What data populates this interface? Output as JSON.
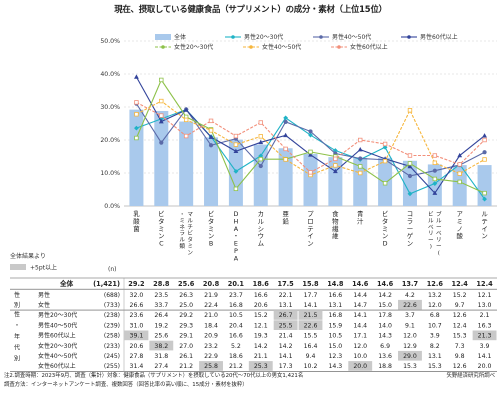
{
  "title": "現在、摂取している健康食品（サプリメント）の成分・素材（上位15位）",
  "chart_data": {
    "type": "bar",
    "ylim": [
      0,
      50
    ],
    "yticks": [
      "0.0%",
      "10.0%",
      "20.0%",
      "30.0%",
      "40.0%",
      "50.0%"
    ],
    "grid": true,
    "legend_position": "top",
    "categories": [
      "乳酸菌",
      "ビタミンC",
      "マルチビタミン・ミネラル類",
      "ビタミンB",
      "DHA・EPA",
      "カルシウム",
      "亜鉛",
      "プロテイン",
      "食物繊維",
      "青汁",
      "ビタミンD",
      "コラーゲン",
      "ブルーベリー（ビルベリー）",
      "アミノ酸",
      "ルテイン"
    ],
    "totals": [
      29.2,
      28.8,
      25.6,
      20.8,
      20.1,
      18.6,
      17.5,
      15.8,
      14.8,
      14.6,
      14.6,
      13.7,
      12.6,
      12.4,
      12.4
    ],
    "series": [
      {
        "name": "全体",
        "color": "#a9c9ec",
        "values": [
          29.2,
          28.8,
          25.6,
          20.8,
          20.1,
          18.6,
          17.5,
          15.8,
          14.8,
          14.6,
          14.6,
          13.7,
          12.6,
          12.4,
          12.4
        ]
      },
      {
        "name": "男性20～30代",
        "color": "#1fb3c6",
        "values": [
          23.6,
          26.4,
          29.2,
          21.0,
          10.5,
          15.2,
          26.7,
          21.5,
          16.8,
          14.1,
          17.8,
          3.7,
          6.8,
          12.6,
          2.1
        ]
      },
      {
        "name": "男性40～50代",
        "color": "#5b6aa8",
        "values": [
          31.0,
          19.2,
          29.3,
          18.4,
          20.4,
          12.1,
          25.5,
          22.6,
          15.9,
          14.4,
          14.0,
          9.1,
          10.7,
          12.4,
          16.3
        ]
      },
      {
        "name": "男性60代以上",
        "color": "#33449b",
        "values": [
          39.1,
          25.6,
          29.1,
          20.9,
          16.6,
          19.3,
          21.4,
          15.5,
          10.5,
          17.1,
          14.3,
          12.0,
          3.9,
          15.3,
          21.3
        ]
      },
      {
        "name": "女性20～30代",
        "color": "#8dc149",
        "values": [
          20.6,
          38.2,
          27.0,
          23.2,
          5.2,
          14.2,
          14.2,
          16.4,
          15.0,
          12.0,
          6.9,
          12.9,
          8.2,
          7.3,
          3.9
        ]
      },
      {
        "name": "女性40～50代",
        "color": "#f6b63c",
        "values": [
          27.8,
          31.8,
          26.1,
          22.9,
          18.6,
          21.1,
          14.1,
          9.4,
          12.3,
          10.0,
          13.6,
          29.0,
          13.1,
          9.8,
          14.1
        ]
      },
      {
        "name": "女性60代以上",
        "color": "#f28f7a",
        "values": [
          31.4,
          27.4,
          21.2,
          25.8,
          21.2,
          25.3,
          17.3,
          10.2,
          14.3,
          20.0,
          18.8,
          15.3,
          15.3,
          12.6,
          20.0
        ]
      }
    ]
  },
  "axis_unit": "(n)",
  "shade_note": {
    "line1": "全体結果より",
    "line2": "+5pt以上"
  },
  "table": {
    "header_label": "全体",
    "header_n": "(1,421)",
    "group_sex": "性別",
    "group_age": "性・年代別",
    "rows": [
      {
        "label": "男性",
        "n": "(688)",
        "values": [
          "32.0",
          "23.5",
          "26.3",
          "21.9",
          "23.7",
          "16.6",
          "22.1",
          "17.7",
          "16.6",
          "14.4",
          "14.2",
          "4.2",
          "13.2",
          "15.2",
          "12.1"
        ],
        "shade": []
      },
      {
        "label": "女性",
        "n": "(733)",
        "values": [
          "26.6",
          "33.7",
          "25.0",
          "22.4",
          "16.8",
          "20.6",
          "13.1",
          "14.1",
          "13.1",
          "14.7",
          "15.0",
          "22.6",
          "12.0",
          "9.7",
          "13.0"
        ],
        "shade": [
          11
        ]
      },
      {
        "label": "男性20～30代",
        "n": "(238)",
        "values": [
          "23.6",
          "26.4",
          "29.2",
          "21.0",
          "10.5",
          "15.2",
          "26.7",
          "21.5",
          "16.8",
          "14.1",
          "17.8",
          "3.7",
          "6.8",
          "12.6",
          "2.1"
        ],
        "shade": [
          6,
          7
        ]
      },
      {
        "label": "男性40～50代",
        "n": "(239)",
        "values": [
          "31.0",
          "19.2",
          "29.3",
          "18.4",
          "20.4",
          "12.1",
          "25.5",
          "22.6",
          "15.9",
          "14.4",
          "14.0",
          "9.1",
          "10.7",
          "12.4",
          "16.3"
        ],
        "shade": [
          6,
          7
        ]
      },
      {
        "label": "男性60代以上",
        "n": "(258)",
        "values": [
          "39.1",
          "25.6",
          "29.1",
          "20.9",
          "16.6",
          "19.3",
          "21.4",
          "15.5",
          "10.5",
          "17.1",
          "14.3",
          "12.0",
          "3.9",
          "15.3",
          "21.3"
        ],
        "shade": [
          0,
          14
        ]
      },
      {
        "label": "女性20～30代",
        "n": "(233)",
        "values": [
          "20.6",
          "38.2",
          "27.0",
          "23.2",
          "5.2",
          "14.2",
          "14.2",
          "16.4",
          "15.0",
          "12.0",
          "6.9",
          "12.9",
          "8.2",
          "7.3",
          "3.9"
        ],
        "shade": [
          1
        ]
      },
      {
        "label": "女性40～50代",
        "n": "(245)",
        "values": [
          "27.8",
          "31.8",
          "26.1",
          "22.9",
          "18.6",
          "21.1",
          "14.1",
          "9.4",
          "12.3",
          "10.0",
          "13.6",
          "29.0",
          "13.1",
          "9.8",
          "14.1"
        ],
        "shade": [
          11
        ]
      },
      {
        "label": "女性60代以上",
        "n": "(255)",
        "values": [
          "31.4",
          "27.4",
          "21.2",
          "25.8",
          "21.2",
          "25.3",
          "17.3",
          "10.2",
          "14.3",
          "20.0",
          "18.8",
          "15.3",
          "15.3",
          "12.6",
          "20.0"
        ],
        "shade": [
          3,
          5,
          9
        ]
      }
    ]
  },
  "footnote_1": "注2.調査時期：2023年9月、調査（集計）対象：健康食品（サプリメント）を摂取している20代～70代以上の男女1,421名",
  "footnote_2": "調査方法：インターネットアンケート調査、複数回答（回答比率の高い順に、15成分・素材を抜粋）",
  "source": "矢野経済研究所調べ"
}
